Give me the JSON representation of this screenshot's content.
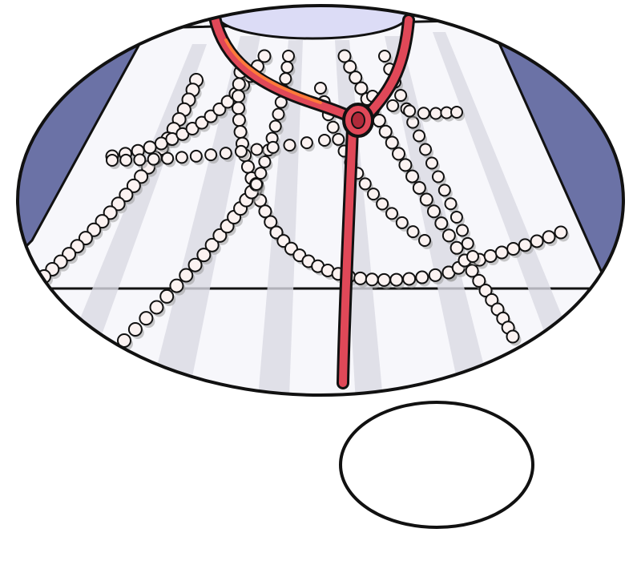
{
  "scene": {
    "subject": "thought-bubble-comic-panel",
    "colors": {
      "background": "#ffffff",
      "outline": "#111111",
      "sleeve": "#6b72a6",
      "sleeve_shadow": "#5a608f",
      "collar": "#dcdcf6",
      "dress_base": "#f7f7fb",
      "dress_pleat": "#d9d9e4",
      "pearl": "#fbf2f1",
      "pearl_shadow": "#9c9c9c",
      "ribbon": "#e04858",
      "ribbon_highlight": "#ff7a3a",
      "ribbon_dark": "#b02a3a"
    },
    "icons": [
      "pearl-strand",
      "ribbon-bow",
      "thought-bubble-tail"
    ]
  }
}
